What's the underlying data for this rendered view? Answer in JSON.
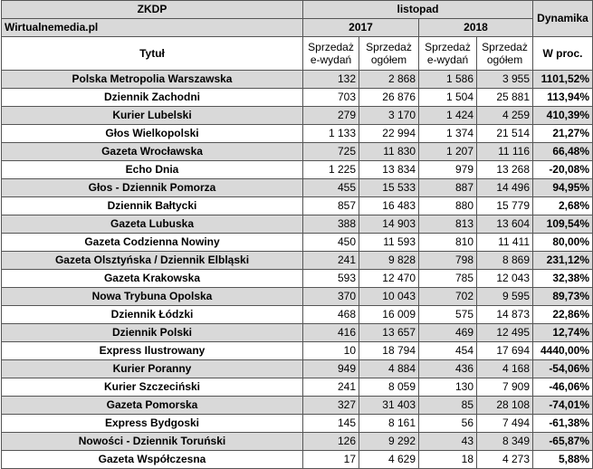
{
  "header": {
    "source": "ZKDP",
    "site": "Wirtualnemedia.pl",
    "month": "listopad",
    "year1": "2017",
    "year2": "2018",
    "dynamics": "Dynamika",
    "col_title": "Tytuł",
    "col_e_sales": "Sprzedaż e-wydań",
    "col_total_sales": "Sprzedaż ogółem",
    "col_percent": "W proc."
  },
  "rows": [
    {
      "title": "Polska Metropolia Warszawska",
      "e2017": "132",
      "t2017": "2 868",
      "e2018": "1 586",
      "t2018": "3 955",
      "pct": "1101,52%"
    },
    {
      "title": "Dziennik Zachodni",
      "e2017": "703",
      "t2017": "26 876",
      "e2018": "1 504",
      "t2018": "25 881",
      "pct": "113,94%"
    },
    {
      "title": "Kurier Lubelski",
      "e2017": "279",
      "t2017": "3 170",
      "e2018": "1 424",
      "t2018": "4 259",
      "pct": "410,39%"
    },
    {
      "title": "Głos Wielkopolski",
      "e2017": "1 133",
      "t2017": "22 994",
      "e2018": "1 374",
      "t2018": "21 514",
      "pct": "21,27%"
    },
    {
      "title": "Gazeta Wrocławska",
      "e2017": "725",
      "t2017": "11 830",
      "e2018": "1 207",
      "t2018": "11 116",
      "pct": "66,48%"
    },
    {
      "title": "Echo Dnia",
      "e2017": "1 225",
      "t2017": "13 834",
      "e2018": "979",
      "t2018": "13 268",
      "pct": "-20,08%"
    },
    {
      "title": "Głos - Dziennik Pomorza",
      "e2017": "455",
      "t2017": "15 533",
      "e2018": "887",
      "t2018": "14 496",
      "pct": "94,95%"
    },
    {
      "title": "Dziennik Bałtycki",
      "e2017": "857",
      "t2017": "16 483",
      "e2018": "880",
      "t2018": "15 779",
      "pct": "2,68%"
    },
    {
      "title": "Gazeta Lubuska",
      "e2017": "388",
      "t2017": "14 903",
      "e2018": "813",
      "t2018": "13 604",
      "pct": "109,54%"
    },
    {
      "title": "Gazeta Codzienna Nowiny",
      "e2017": "450",
      "t2017": "11 593",
      "e2018": "810",
      "t2018": "11 411",
      "pct": "80,00%"
    },
    {
      "title": "Gazeta Olsztyńska / Dziennik Elbląski",
      "e2017": "241",
      "t2017": "9 828",
      "e2018": "798",
      "t2018": "8 869",
      "pct": "231,12%"
    },
    {
      "title": "Gazeta Krakowska",
      "e2017": "593",
      "t2017": "12 470",
      "e2018": "785",
      "t2018": "12 043",
      "pct": "32,38%"
    },
    {
      "title": "Nowa Trybuna Opolska",
      "e2017": "370",
      "t2017": "10 043",
      "e2018": "702",
      "t2018": "9 595",
      "pct": "89,73%"
    },
    {
      "title": "Dziennik Łódzki",
      "e2017": "468",
      "t2017": "16 009",
      "e2018": "575",
      "t2018": "14 873",
      "pct": "22,86%"
    },
    {
      "title": "Dziennik Polski",
      "e2017": "416",
      "t2017": "13 657",
      "e2018": "469",
      "t2018": "12 495",
      "pct": "12,74%"
    },
    {
      "title": "Express Ilustrowany",
      "e2017": "10",
      "t2017": "18 794",
      "e2018": "454",
      "t2018": "17 694",
      "pct": "4440,00%"
    },
    {
      "title": "Kurier Poranny",
      "e2017": "949",
      "t2017": "4 884",
      "e2018": "436",
      "t2018": "4 168",
      "pct": "-54,06%"
    },
    {
      "title": "Kurier Szczeciński",
      "e2017": "241",
      "t2017": "8 059",
      "e2018": "130",
      "t2018": "7 909",
      "pct": "-46,06%"
    },
    {
      "title": "Gazeta Pomorska",
      "e2017": "327",
      "t2017": "31 403",
      "e2018": "85",
      "t2018": "28 108",
      "pct": "-74,01%"
    },
    {
      "title": "Express Bydgoski",
      "e2017": "145",
      "t2017": "8 161",
      "e2018": "56",
      "t2018": "7 494",
      "pct": "-61,38%"
    },
    {
      "title": "Nowości - Dziennik Toruński",
      "e2017": "126",
      "t2017": "9 292",
      "e2018": "43",
      "t2018": "8 349",
      "pct": "-65,87%"
    },
    {
      "title": "Gazeta Współczesna",
      "e2017": "17",
      "t2017": "4 629",
      "e2018": "18",
      "t2018": "4 273",
      "pct": "5,88%"
    }
  ]
}
